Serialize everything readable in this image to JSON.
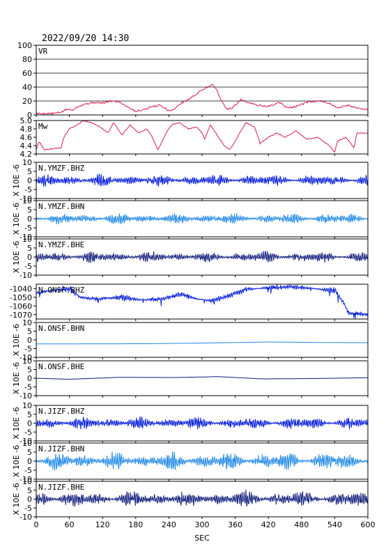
{
  "header": {
    "datetime": "2022/09/20 14:30"
  },
  "chart_data": {
    "type": "line",
    "xlabel": "SEC",
    "xlim": [
      0,
      600
    ],
    "xticks": [
      "0",
      "60",
      "120",
      "180",
      "240",
      "300",
      "360",
      "420",
      "480",
      "540",
      "600"
    ],
    "panels": [
      {
        "id": "vr",
        "label": "VR",
        "ylim": [
          0,
          100
        ],
        "yticks": [
          "0",
          "20",
          "40",
          "60",
          "80",
          "100"
        ],
        "grid": true,
        "color": "#d81b4a",
        "series": [
          {
            "x": 0,
            "y": 2
          },
          {
            "x": 30,
            "y": 2
          },
          {
            "x": 45,
            "y": 4
          },
          {
            "x": 55,
            "y": 8
          },
          {
            "x": 65,
            "y": 7
          },
          {
            "x": 75,
            "y": 12
          },
          {
            "x": 90,
            "y": 16
          },
          {
            "x": 105,
            "y": 18
          },
          {
            "x": 120,
            "y": 17
          },
          {
            "x": 135,
            "y": 20
          },
          {
            "x": 150,
            "y": 19
          },
          {
            "x": 165,
            "y": 12
          },
          {
            "x": 180,
            "y": 5
          },
          {
            "x": 195,
            "y": 8
          },
          {
            "x": 210,
            "y": 12
          },
          {
            "x": 225,
            "y": 14
          },
          {
            "x": 240,
            "y": 6
          },
          {
            "x": 250,
            "y": 8
          },
          {
            "x": 260,
            "y": 16
          },
          {
            "x": 275,
            "y": 22
          },
          {
            "x": 290,
            "y": 30
          },
          {
            "x": 300,
            "y": 36
          },
          {
            "x": 310,
            "y": 40
          },
          {
            "x": 318,
            "y": 44
          },
          {
            "x": 325,
            "y": 38
          },
          {
            "x": 335,
            "y": 20
          },
          {
            "x": 345,
            "y": 8
          },
          {
            "x": 355,
            "y": 10
          },
          {
            "x": 370,
            "y": 22
          },
          {
            "x": 385,
            "y": 18
          },
          {
            "x": 400,
            "y": 14
          },
          {
            "x": 420,
            "y": 12
          },
          {
            "x": 440,
            "y": 18
          },
          {
            "x": 455,
            "y": 10
          },
          {
            "x": 470,
            "y": 12
          },
          {
            "x": 490,
            "y": 18
          },
          {
            "x": 510,
            "y": 20
          },
          {
            "x": 530,
            "y": 17
          },
          {
            "x": 545,
            "y": 10
          },
          {
            "x": 565,
            "y": 14
          },
          {
            "x": 580,
            "y": 10
          },
          {
            "x": 600,
            "y": 8
          }
        ]
      },
      {
        "id": "mw",
        "label": "Mw",
        "ylim": [
          4.2,
          5.0
        ],
        "yticks": [
          "4.2",
          "4.4",
          "4.6",
          "4.8",
          "5.0"
        ],
        "grid": false,
        "color": "#d81b4a",
        "series": [
          {
            "x": 0,
            "y": 4.3
          },
          {
            "x": 5,
            "y": 4.5
          },
          {
            "x": 15,
            "y": 4.3
          },
          {
            "x": 45,
            "y": 4.35
          },
          {
            "x": 50,
            "y": 4.6
          },
          {
            "x": 60,
            "y": 4.8
          },
          {
            "x": 75,
            "y": 4.9
          },
          {
            "x": 85,
            "y": 5.0
          },
          {
            "x": 100,
            "y": 4.95
          },
          {
            "x": 115,
            "y": 4.85
          },
          {
            "x": 130,
            "y": 4.7
          },
          {
            "x": 140,
            "y": 4.95
          },
          {
            "x": 155,
            "y": 4.65
          },
          {
            "x": 170,
            "y": 4.9
          },
          {
            "x": 185,
            "y": 4.7
          },
          {
            "x": 200,
            "y": 4.8
          },
          {
            "x": 210,
            "y": 4.6
          },
          {
            "x": 220,
            "y": 4.3
          },
          {
            "x": 235,
            "y": 4.7
          },
          {
            "x": 245,
            "y": 4.9
          },
          {
            "x": 260,
            "y": 4.95
          },
          {
            "x": 275,
            "y": 4.8
          },
          {
            "x": 290,
            "y": 4.85
          },
          {
            "x": 300,
            "y": 4.7
          },
          {
            "x": 305,
            "y": 4.55
          },
          {
            "x": 315,
            "y": 4.9
          },
          {
            "x": 330,
            "y": 4.6
          },
          {
            "x": 340,
            "y": 4.4
          },
          {
            "x": 350,
            "y": 4.3
          },
          {
            "x": 360,
            "y": 4.5
          },
          {
            "x": 370,
            "y": 4.75
          },
          {
            "x": 380,
            "y": 4.95
          },
          {
            "x": 395,
            "y": 4.85
          },
          {
            "x": 405,
            "y": 4.45
          },
          {
            "x": 420,
            "y": 4.6
          },
          {
            "x": 435,
            "y": 4.7
          },
          {
            "x": 450,
            "y": 4.6
          },
          {
            "x": 470,
            "y": 4.75
          },
          {
            "x": 490,
            "y": 4.55
          },
          {
            "x": 510,
            "y": 4.6
          },
          {
            "x": 530,
            "y": 4.4
          },
          {
            "x": 540,
            "y": 4.25
          },
          {
            "x": 545,
            "y": 4.5
          },
          {
            "x": 560,
            "y": 4.6
          },
          {
            "x": 575,
            "y": 4.35
          },
          {
            "x": 580,
            "y": 4.7
          },
          {
            "x": 600,
            "y": 4.7
          }
        ]
      },
      {
        "id": "ymzf-bhz",
        "label": "N.YMZF.BHZ",
        "unit": "X 10E -6",
        "ylim": [
          -10,
          10
        ],
        "yticks": [
          "-10",
          "-5",
          "0",
          "5",
          "10"
        ],
        "color": "#0018d8",
        "style": "noise",
        "amp": 2.2,
        "seed": 11
      },
      {
        "id": "ymzf-bhn",
        "label": "N.YMZF.BHN",
        "unit": "X 10E -6",
        "ylim": [
          -10,
          10
        ],
        "yticks": [
          "-10",
          "-5",
          "0",
          "5",
          "10"
        ],
        "color": "#1e88e5",
        "style": "noise",
        "amp": 2.0,
        "seed": 23
      },
      {
        "id": "ymzf-bhe",
        "label": "N.YMZF.BHE",
        "unit": "X 10E -6",
        "ylim": [
          -10,
          10
        ],
        "yticks": [
          "-10",
          "-5",
          "0",
          "5",
          "10"
        ],
        "color": "#0d1a7a",
        "style": "noise",
        "amp": 2.0,
        "seed": 37
      },
      {
        "id": "onsf-bhz",
        "label": "N.ONSF.BHZ",
        "ylim": [
          -1075,
          -1035
        ],
        "yticks": [
          "-1070",
          "-1060",
          "-1050",
          "-1040"
        ],
        "color": "#0018d8",
        "style": "drift",
        "amp": 2.5,
        "seed": 41,
        "series": [
          {
            "x": 0,
            "y": -1045
          },
          {
            "x": 30,
            "y": -1042
          },
          {
            "x": 60,
            "y": -1040
          },
          {
            "x": 80,
            "y": -1050
          },
          {
            "x": 110,
            "y": -1052
          },
          {
            "x": 150,
            "y": -1050
          },
          {
            "x": 190,
            "y": -1053
          },
          {
            "x": 230,
            "y": -1052
          },
          {
            "x": 260,
            "y": -1046
          },
          {
            "x": 290,
            "y": -1052
          },
          {
            "x": 320,
            "y": -1054
          },
          {
            "x": 350,
            "y": -1048
          },
          {
            "x": 380,
            "y": -1041
          },
          {
            "x": 420,
            "y": -1039
          },
          {
            "x": 460,
            "y": -1038
          },
          {
            "x": 500,
            "y": -1040
          },
          {
            "x": 540,
            "y": -1042
          },
          {
            "x": 555,
            "y": -1055
          },
          {
            "x": 565,
            "y": -1068
          },
          {
            "x": 600,
            "y": -1070
          }
        ]
      },
      {
        "id": "onsf-bhn",
        "label": "N.ONSF.BHN",
        "unit": "X 10E -6",
        "ylim": [
          -10,
          10
        ],
        "yticks": [
          "-10",
          "-5",
          "0",
          "5",
          "10"
        ],
        "color": "#1e88e5",
        "style": "smooth",
        "series": [
          {
            "x": 0,
            "y": -2.3
          },
          {
            "x": 200,
            "y": -2.2
          },
          {
            "x": 300,
            "y": -1.8
          },
          {
            "x": 420,
            "y": -1.2
          },
          {
            "x": 520,
            "y": -1.5
          },
          {
            "x": 600,
            "y": -1.6
          }
        ]
      },
      {
        "id": "onsf-bhe",
        "label": "N.ONSF.BHE",
        "unit": "X 10E -6",
        "ylim": [
          -10,
          10
        ],
        "yticks": [
          "-10",
          "-5",
          "0",
          "5",
          "10"
        ],
        "color": "#0d1a7a",
        "style": "smooth",
        "series": [
          {
            "x": 0,
            "y": 0
          },
          {
            "x": 60,
            "y": -0.6
          },
          {
            "x": 150,
            "y": 0.5
          },
          {
            "x": 250,
            "y": 0.4
          },
          {
            "x": 330,
            "y": 0.9
          },
          {
            "x": 410,
            "y": -0.4
          },
          {
            "x": 500,
            "y": -0.2
          },
          {
            "x": 600,
            "y": 0.3
          }
        ]
      },
      {
        "id": "jizf-bhz",
        "label": "N.JIZF.BHZ",
        "unit": "X 10E -6",
        "ylim": [
          -10,
          10
        ],
        "yticks": [
          "-10",
          "-5",
          "0",
          "5",
          "10"
        ],
        "color": "#0018d8",
        "style": "noise",
        "amp": 2.3,
        "seed": 53
      },
      {
        "id": "jizf-bhn",
        "label": "N.JIZF.BHN",
        "unit": "X 10E -6",
        "ylim": [
          -10,
          10
        ],
        "yticks": [
          "-10",
          "-5",
          "0",
          "5",
          "10"
        ],
        "color": "#1e88e5",
        "style": "noise",
        "amp": 3.2,
        "seed": 67
      },
      {
        "id": "jizf-bhe",
        "label": "N.JIZF.BHE",
        "unit": "X 10E -6",
        "ylim": [
          -10,
          10
        ],
        "yticks": [
          "-10",
          "-5",
          "0",
          "5",
          "10"
        ],
        "color": "#0d1a7a",
        "style": "noise",
        "amp": 3.0,
        "seed": 79
      }
    ]
  }
}
